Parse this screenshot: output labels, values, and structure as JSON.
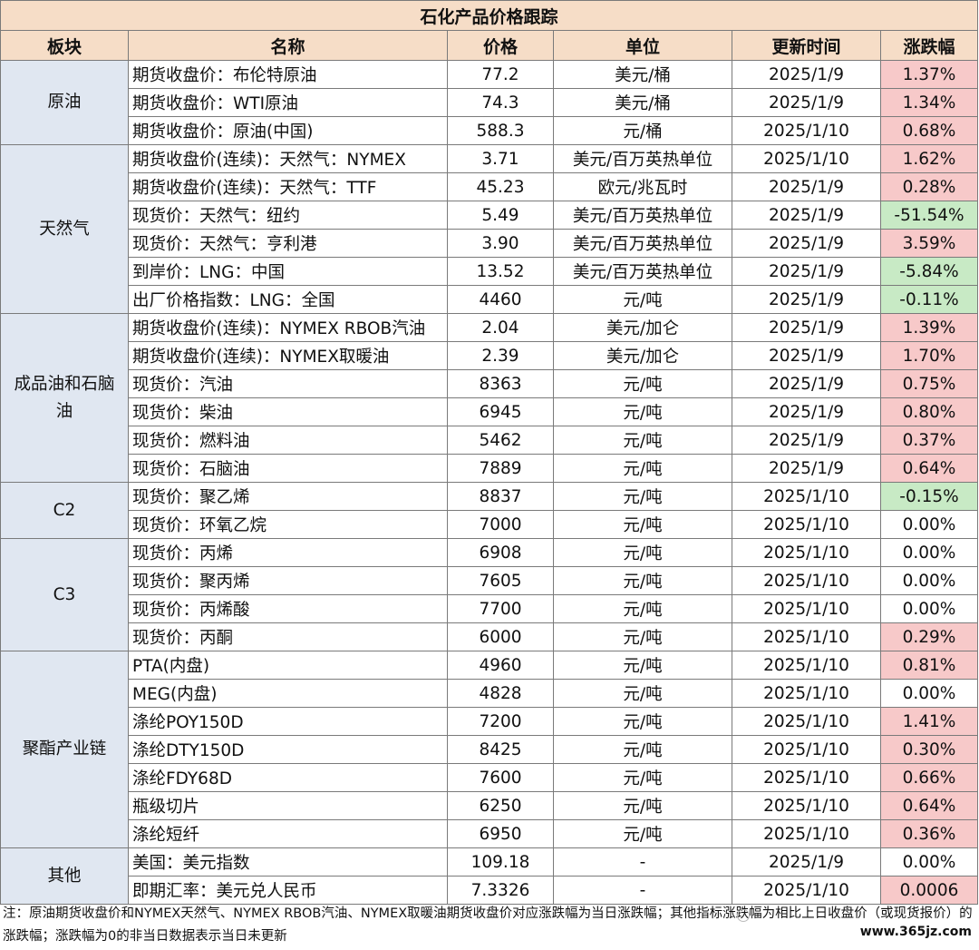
{
  "title": "石化产品价格跟踪",
  "headers": [
    "板块",
    "名称",
    "价格",
    "单位",
    "更新时间",
    "涨跌幅"
  ],
  "colors": {
    "up": "#f7c9c9",
    "down": "#c8eac5",
    "flat": "#ffffff",
    "sector_bg": "#e0e7f1",
    "header_bg": "#f6ddc7"
  },
  "groups": [
    {
      "sector": "原油",
      "rows": [
        {
          "name": "期货收盘价：布伦特原油",
          "price": "77.2",
          "unit": "美元/桶",
          "date": "2025/1/9",
          "change": "1.37%",
          "dir": "up"
        },
        {
          "name": "期货收盘价：WTI原油",
          "price": "74.3",
          "unit": "美元/桶",
          "date": "2025/1/9",
          "change": "1.34%",
          "dir": "up"
        },
        {
          "name": "期货收盘价：原油(中国)",
          "price": "588.3",
          "unit": "元/桶",
          "date": "2025/1/10",
          "change": "0.68%",
          "dir": "up"
        }
      ]
    },
    {
      "sector": "天然气",
      "rows": [
        {
          "name": "期货收盘价(连续)：天然气：NYMEX",
          "price": "3.71",
          "unit": "美元/百万英热单位",
          "date": "2025/1/10",
          "change": "1.62%",
          "dir": "up"
        },
        {
          "name": "期货收盘价(连续)：天然气：TTF",
          "price": "45.23",
          "unit": "欧元/兆瓦时",
          "date": "2025/1/9",
          "change": "0.28%",
          "dir": "up"
        },
        {
          "name": "现货价：天然气：纽约",
          "price": "5.49",
          "unit": "美元/百万英热单位",
          "date": "2025/1/9",
          "change": "-51.54%",
          "dir": "down"
        },
        {
          "name": "现货价：天然气：亨利港",
          "price": "3.90",
          "unit": "美元/百万英热单位",
          "date": "2025/1/9",
          "change": "3.59%",
          "dir": "up"
        },
        {
          "name": "到岸价：LNG：中国",
          "price": "13.52",
          "unit": "美元/百万英热单位",
          "date": "2025/1/9",
          "change": "-5.84%",
          "dir": "down"
        },
        {
          "name": "出厂价格指数：LNG：全国",
          "price": "4460",
          "unit": "元/吨",
          "date": "2025/1/9",
          "change": "-0.11%",
          "dir": "down"
        }
      ]
    },
    {
      "sector": "成品油和石脑油",
      "rows": [
        {
          "name": "期货收盘价(连续)：NYMEX RBOB汽油",
          "price": "2.04",
          "unit": "美元/加仑",
          "date": "2025/1/9",
          "change": "1.39%",
          "dir": "up"
        },
        {
          "name": "期货收盘价(连续)：NYMEX取暖油",
          "price": "2.39",
          "unit": "美元/加仑",
          "date": "2025/1/9",
          "change": "1.70%",
          "dir": "up"
        },
        {
          "name": "现货价：汽油",
          "price": "8363",
          "unit": "元/吨",
          "date": "2025/1/9",
          "change": "0.75%",
          "dir": "up"
        },
        {
          "name": "现货价：柴油",
          "price": "6945",
          "unit": "元/吨",
          "date": "2025/1/9",
          "change": "0.80%",
          "dir": "up"
        },
        {
          "name": "现货价：燃料油",
          "price": "5462",
          "unit": "元/吨",
          "date": "2025/1/9",
          "change": "0.37%",
          "dir": "up"
        },
        {
          "name": "现货价：石脑油",
          "price": "7889",
          "unit": "元/吨",
          "date": "2025/1/9",
          "change": "0.64%",
          "dir": "up"
        }
      ]
    },
    {
      "sector": "C2",
      "rows": [
        {
          "name": "现货价：聚乙烯",
          "price": "8837",
          "unit": "元/吨",
          "date": "2025/1/10",
          "change": "-0.15%",
          "dir": "down"
        },
        {
          "name": "现货价：环氧乙烷",
          "price": "7000",
          "unit": "元/吨",
          "date": "2025/1/10",
          "change": "0.00%",
          "dir": "flat"
        }
      ]
    },
    {
      "sector": "C3",
      "rows": [
        {
          "name": "现货价：丙烯",
          "price": "6908",
          "unit": "元/吨",
          "date": "2025/1/10",
          "change": "0.00%",
          "dir": "flat"
        },
        {
          "name": "现货价：聚丙烯",
          "price": "7605",
          "unit": "元/吨",
          "date": "2025/1/10",
          "change": "0.00%",
          "dir": "flat"
        },
        {
          "name": "现货价：丙烯酸",
          "price": "7700",
          "unit": "元/吨",
          "date": "2025/1/10",
          "change": "0.00%",
          "dir": "flat"
        },
        {
          "name": "现货价：丙酮",
          "price": "6000",
          "unit": "元/吨",
          "date": "2025/1/10",
          "change": "0.29%",
          "dir": "up"
        }
      ]
    },
    {
      "sector": "聚酯产业链",
      "rows": [
        {
          "name": "PTA(内盘)",
          "price": "4960",
          "unit": "元/吨",
          "date": "2025/1/10",
          "change": "0.81%",
          "dir": "up"
        },
        {
          "name": "MEG(内盘)",
          "price": "4828",
          "unit": "元/吨",
          "date": "2025/1/10",
          "change": "0.00%",
          "dir": "flat"
        },
        {
          "name": "涤纶POY150D",
          "price": "7200",
          "unit": "元/吨",
          "date": "2025/1/10",
          "change": "1.41%",
          "dir": "up"
        },
        {
          "name": "涤纶DTY150D",
          "price": "8425",
          "unit": "元/吨",
          "date": "2025/1/10",
          "change": "0.30%",
          "dir": "up"
        },
        {
          "name": "涤纶FDY68D",
          "price": "7600",
          "unit": "元/吨",
          "date": "2025/1/10",
          "change": "0.66%",
          "dir": "up"
        },
        {
          "name": "瓶级切片",
          "price": "6250",
          "unit": "元/吨",
          "date": "2025/1/10",
          "change": "0.64%",
          "dir": "up"
        },
        {
          "name": "涤纶短纤",
          "price": "6950",
          "unit": "元/吨",
          "date": "2025/1/10",
          "change": "0.36%",
          "dir": "up"
        }
      ]
    },
    {
      "sector": "其他",
      "rows": [
        {
          "name": "美国：美元指数",
          "price": "109.18",
          "unit": "-",
          "date": "2025/1/9",
          "change": "0.00%",
          "dir": "flat"
        },
        {
          "name": "即期汇率：美元兑人民币",
          "price": "7.3326",
          "unit": "-",
          "date": "2025/1/10",
          "change": "0.0006",
          "dir": "up"
        }
      ]
    }
  ],
  "note": "注：原油期货收盘价和NYMEX天然气、NYMEX RBOB汽油、NYMEX取暖油期货收盘价对应涨跌幅为当日涨跌幅；其他指标涨跌幅为相比上日收盘价（或现货报价）的涨跌幅；涨跌幅为0的非当日数据表示当日未更新",
  "watermark": "www.365jz.com"
}
